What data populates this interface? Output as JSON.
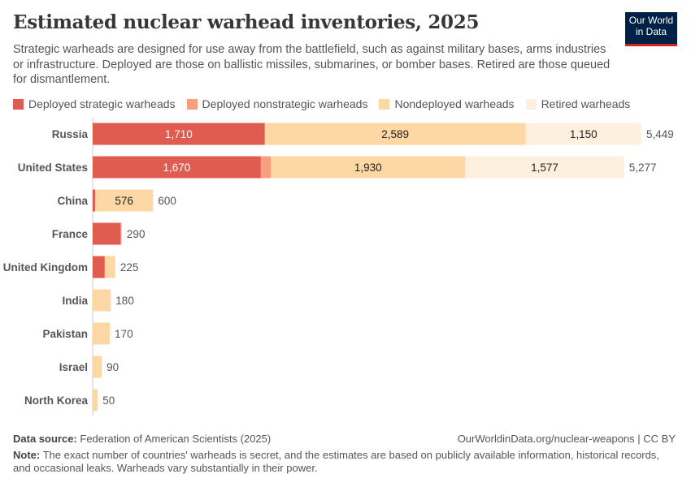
{
  "title": "Estimated nuclear warhead inventories, 2025",
  "subtitle": "Strategic warheads are designed for use away from the battlefield, such as against military bases, arms industries or infrastructure. Deployed are those on ballistic missiles, submarines, or bomber bases. Retired are those queued for dismantlement.",
  "logo": "Our World in Data",
  "footer": {
    "source_label": "Data source:",
    "source": "Federation of American Scientists (2025)",
    "url": "OurWorldinData.org/nuclear-weapons | CC BY",
    "note_label": "Note:",
    "note": "The exact number of countries' warheads is secret, and the estimates are based on publicly available information, historical records, and occasional leaks. Warheads vary substantially in their power."
  },
  "chart_data": {
    "type": "stacked-bar-horizontal",
    "title": "Estimated nuclear warhead inventories, 2025",
    "categories": [
      "Russia",
      "United States",
      "China",
      "France",
      "United Kingdom",
      "India",
      "Pakistan",
      "Israel",
      "North Korea"
    ],
    "series": [
      {
        "name": "Deployed strategic warheads",
        "color": "#e05b50",
        "values": [
          1710,
          1670,
          24,
          280,
          120,
          0,
          0,
          0,
          0
        ]
      },
      {
        "name": "Deployed nonstrategic warheads",
        "color": "#f8a07e",
        "values": [
          0,
          100,
          0,
          0,
          0,
          0,
          0,
          0,
          0
        ]
      },
      {
        "name": "Nondeployed warheads",
        "color": "#fdd7a4",
        "values": [
          2589,
          1930,
          576,
          10,
          105,
          180,
          170,
          90,
          50
        ]
      },
      {
        "name": "Retired warheads",
        "color": "#fdf0de",
        "values": [
          1150,
          1577,
          0,
          0,
          0,
          0,
          0,
          0,
          0
        ]
      }
    ],
    "totals": [
      5449,
      5277,
      600,
      290,
      225,
      180,
      170,
      90,
      50
    ],
    "legend": "top-left"
  }
}
